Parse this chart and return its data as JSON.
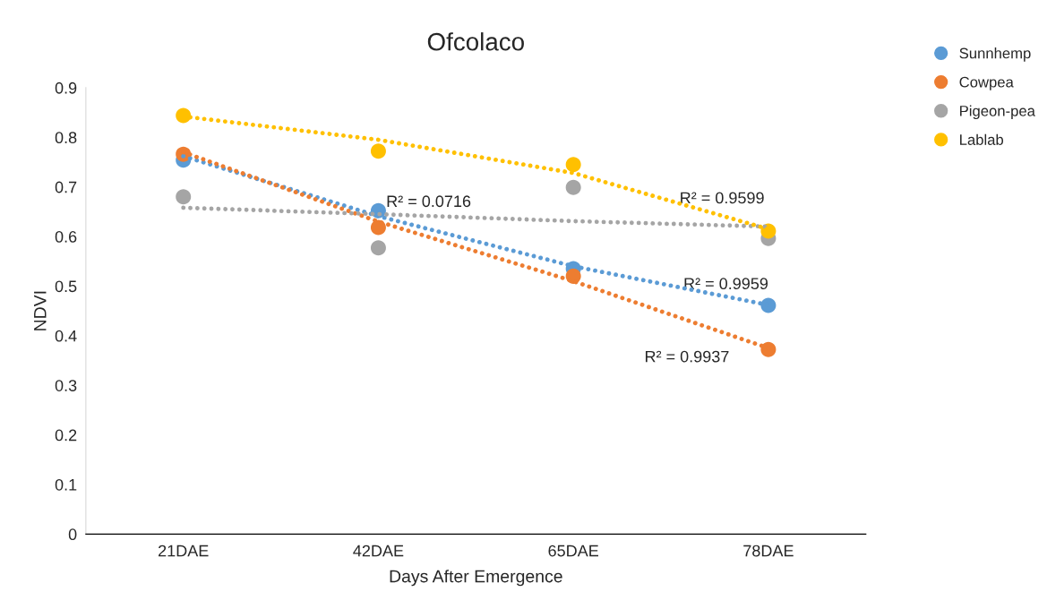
{
  "chart_data": {
    "type": "scatter",
    "title": "Ofcolaco",
    "xlabel": "Days After Emergence",
    "ylabel": "NDVI",
    "categories": [
      "21DAE",
      "42DAE",
      "65DAE",
      "78DAE"
    ],
    "series": [
      {
        "name": "Sunnhemp",
        "color": "#5b9bd5",
        "values": [
          0.754,
          0.652,
          0.535,
          0.461
        ],
        "marker": "circle"
      },
      {
        "name": "Cowpea",
        "color": "#ed7d31",
        "values": [
          0.766,
          0.618,
          0.52,
          0.372
        ],
        "marker": "circle"
      },
      {
        "name": "Pigeon-pea",
        "color": "#a5a5a5",
        "values": [
          0.68,
          0.577,
          0.699,
          0.596
        ],
        "marker": "circle"
      },
      {
        "name": "Lablab",
        "color": "#ffc000",
        "values": [
          0.844,
          0.772,
          0.745,
          0.611
        ],
        "marker": "circle"
      },
      {
        "type": "line",
        "color": "#5b9bd5",
        "values": [
          0.762,
          0.641,
          0.54,
          0.462
        ],
        "line_style": "dotted",
        "marker": "none"
      },
      {
        "type": "line",
        "color": "#ed7d31",
        "values": [
          0.77,
          0.63,
          0.51,
          0.375
        ],
        "line_style": "dotted",
        "marker": "none"
      },
      {
        "type": "line",
        "color": "#a5a5a5",
        "values": [
          0.658,
          0.645,
          0.631,
          0.62
        ],
        "line_style": "dotted",
        "marker": "none"
      },
      {
        "type": "line",
        "color": "#ffc000",
        "values": [
          0.842,
          0.795,
          0.728,
          0.615
        ],
        "line_style": "dotted",
        "marker": "none"
      }
    ],
    "ylim": [
      0,
      0.9
    ],
    "yticks": [
      0,
      0.1,
      0.2,
      0.3,
      0.4,
      0.5,
      0.6,
      0.7,
      0.8,
      0.9
    ],
    "annotations": [
      {
        "text": "R² = 0.0716",
        "x": "42DAE",
        "y": 0.645
      },
      {
        "text": "R² = 0.9599",
        "x": "78DAE",
        "y": 0.615
      },
      {
        "text": "R² = 0.9959",
        "x": "78DAE",
        "y": 0.462
      },
      {
        "text": "R² = 0.9937",
        "x": "78DAE",
        "y": 0.375
      }
    ],
    "grid": false,
    "legend": "top right"
  }
}
